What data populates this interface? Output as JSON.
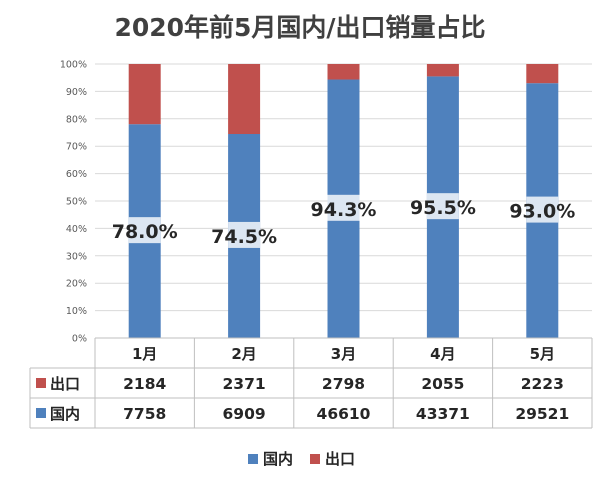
{
  "colors": {
    "domestic": "#4f81bd",
    "export": "#c0504d",
    "label_bg": "#dce6f2",
    "grid": "#d9d9d9",
    "axis": "#bfbfbf"
  },
  "chart_data": {
    "type": "bar",
    "stacked": "percent",
    "title": "2020年前5月国内/出口销量占比",
    "categories": [
      "1月",
      "2月",
      "3月",
      "4月",
      "5月"
    ],
    "y_ticks": [
      "0%",
      "10%",
      "20%",
      "30%",
      "40%",
      "50%",
      "60%",
      "70%",
      "80%",
      "90%",
      "100%"
    ],
    "ylim": [
      0,
      100
    ],
    "grid": true,
    "legend_position": "bottom",
    "series": [
      {
        "name": "国内",
        "color": "#4f81bd",
        "values": [
          7758,
          6909,
          46610,
          43371,
          29521
        ]
      },
      {
        "name": "出口",
        "color": "#c0504d",
        "values": [
          2184,
          2371,
          2798,
          2055,
          2223
        ]
      }
    ],
    "data_labels": [
      "78.0%",
      "74.5%",
      "94.3%",
      "95.5%",
      "93.0%"
    ],
    "data_label_values": [
      78.0,
      74.5,
      94.3,
      95.5,
      93.0
    ],
    "table_rows": [
      {
        "label": "出口",
        "color": "#c0504d",
        "values": [
          "2184",
          "2371",
          "2798",
          "2055",
          "2223"
        ]
      },
      {
        "label": "国内",
        "color": "#4f81bd",
        "values": [
          "7758",
          "6909",
          "46610",
          "43371",
          "29521"
        ]
      }
    ],
    "legend": [
      {
        "label": "国内",
        "color": "#4f81bd"
      },
      {
        "label": "出口",
        "color": "#c0504d"
      }
    ]
  }
}
